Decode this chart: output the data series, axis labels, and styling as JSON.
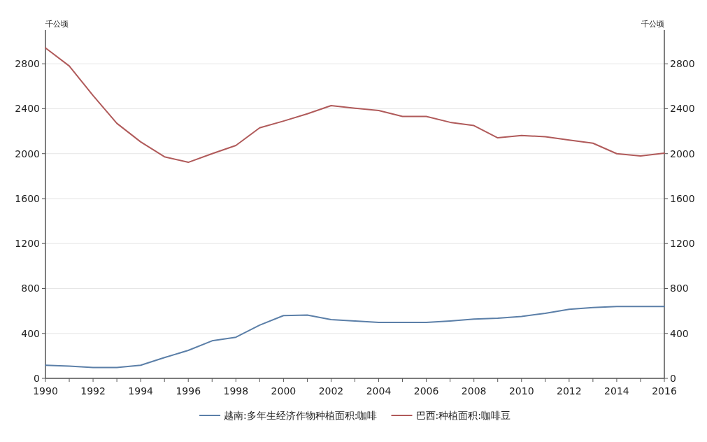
{
  "chart_data": {
    "type": "line",
    "ylabel": "千公顷",
    "y2label": "千公顷",
    "x": [
      1990,
      1991,
      1992,
      1993,
      1994,
      1995,
      1996,
      1997,
      1998,
      1999,
      2000,
      2001,
      2002,
      2003,
      2004,
      2005,
      2006,
      2007,
      2008,
      2009,
      2010,
      2011,
      2012,
      2013,
      2014,
      2015,
      2016
    ],
    "series": [
      {
        "name": "越南:多年生经济作物种植面积:咖啡",
        "color": "#5b7fa8",
        "values": [
          117,
          109,
          97,
          97,
          117,
          185,
          249,
          334,
          366,
          474,
          559,
          563,
          523,
          511,
          498,
          498,
          498,
          511,
          527,
          535,
          551,
          579,
          615,
          631,
          639,
          639,
          639
        ]
      },
      {
        "name": "巴西:种植面积:咖啡豆",
        "color": "#b05a5a",
        "values": [
          2941,
          2780,
          2517,
          2270,
          2105,
          1972,
          1923,
          2000,
          2073,
          2230,
          2290,
          2355,
          2428,
          2404,
          2384,
          2331,
          2331,
          2279,
          2250,
          2141,
          2162,
          2150,
          2121,
          2093,
          2000,
          1980,
          2004
        ]
      }
    ],
    "xlim": [
      1990,
      2016
    ],
    "xticks": [
      1990,
      {
        "value": 1991,
        "label": null
      },
      1992,
      {
        "value": 1993,
        "label": null
      },
      1994,
      {
        "value": 1995,
        "label": null
      },
      1996,
      {
        "value": 1997,
        "label": null
      },
      1998,
      {
        "value": 1999,
        "label": null
      },
      2000,
      {
        "value": 2001,
        "label": null
      },
      2002,
      {
        "value": 2003,
        "label": null
      },
      2004,
      {
        "value": 2005,
        "label": null
      },
      2006,
      {
        "value": 2007,
        "label": null
      },
      2008,
      {
        "value": 2009,
        "label": null
      },
      2010,
      {
        "value": 2011,
        "label": null
      },
      2012,
      {
        "value": 2013,
        "label": null
      },
      2014,
      {
        "value": 2015,
        "label": null
      },
      2016
    ],
    "ylim": [
      0,
      3100
    ],
    "yticks": [
      0,
      400,
      800,
      1200,
      1600,
      2000,
      2400,
      2800
    ],
    "y2lim": [
      0,
      3100
    ],
    "y2ticks": [
      0,
      400,
      800,
      1200,
      1600,
      2000,
      2400,
      2800
    ],
    "grid": "y",
    "legend": "bottom",
    "marker": "none",
    "line_style": "solid"
  }
}
